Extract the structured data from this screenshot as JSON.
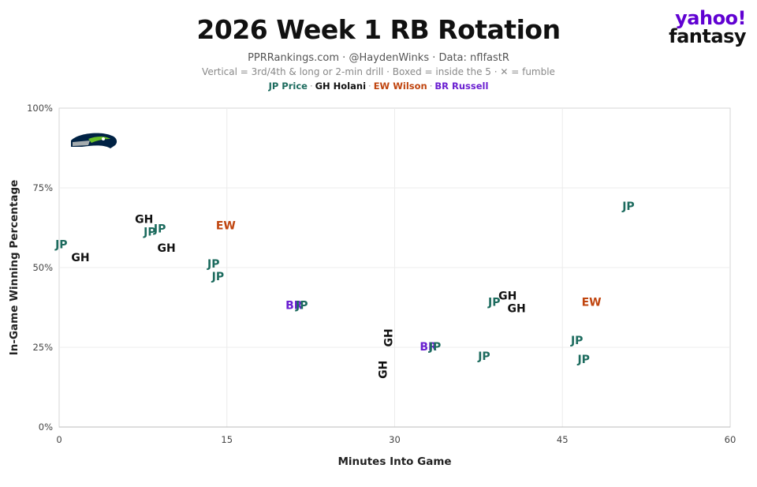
{
  "header": {
    "title": "2026 Week 1 RB Rotation",
    "subtitle_line1": "PPRRankings.com · @HaydenWinks · Data: nflfastR",
    "subtitle_line2": "Vertical = 3rd/4th & long or 2-min drill · Boxed = inside the 5 · ✕ = fumble",
    "legend": [
      {
        "label": "JP Price",
        "color": "#1c6b5e"
      },
      {
        "label": "GH Holani",
        "color": "#111111"
      },
      {
        "label": "EW Wilson",
        "color": "#c0450f"
      },
      {
        "label": "BR Russell",
        "color": "#6a1fd1"
      }
    ]
  },
  "brand": {
    "line1": "yahoo!",
    "line2": "fantasy"
  },
  "team_logo": "seahawks-logo",
  "chart_data": {
    "type": "scatter",
    "xlabel": "Minutes Into Game",
    "ylabel": "In-Game Winning Percentage",
    "xlim": [
      0,
      60
    ],
    "ylim": [
      0,
      100
    ],
    "x_ticks": [
      "0",
      "15",
      "30",
      "45",
      "60"
    ],
    "y_ticks": [
      "0%",
      "25%",
      "50%",
      "75%",
      "100%"
    ],
    "grid": true,
    "points": [
      {
        "label": "JP",
        "player": "JP Price",
        "x": 0.2,
        "y": 57,
        "vertical": false
      },
      {
        "label": "GH",
        "player": "GH Holani",
        "x": 1.9,
        "y": 53,
        "vertical": false
      },
      {
        "label": "GH",
        "player": "GH Holani",
        "x": 7.6,
        "y": 65,
        "vertical": false
      },
      {
        "label": "JP",
        "player": "JP Price",
        "x": 8.1,
        "y": 61,
        "vertical": false
      },
      {
        "label": "JP",
        "player": "JP Price",
        "x": 9.0,
        "y": 62,
        "vertical": false
      },
      {
        "label": "GH",
        "player": "GH Holani",
        "x": 9.6,
        "y": 56,
        "vertical": false
      },
      {
        "label": "EW",
        "player": "EW Wilson",
        "x": 14.9,
        "y": 63,
        "vertical": false
      },
      {
        "label": "JP",
        "player": "JP Price",
        "x": 13.8,
        "y": 51,
        "vertical": false
      },
      {
        "label": "JP",
        "player": "JP Price",
        "x": 14.2,
        "y": 47,
        "vertical": false
      },
      {
        "label": "BR",
        "player": "BR Russell",
        "x": 21.0,
        "y": 38,
        "vertical": false
      },
      {
        "label": "JP",
        "player": "JP Price",
        "x": 21.7,
        "y": 38,
        "vertical": false
      },
      {
        "label": "GH",
        "player": "GH Holani",
        "x": 29.0,
        "y": 18,
        "vertical": true
      },
      {
        "label": "GH",
        "player": "GH Holani",
        "x": 29.5,
        "y": 28,
        "vertical": true
      },
      {
        "label": "BR",
        "player": "BR Russell",
        "x": 33.0,
        "y": 25,
        "vertical": false
      },
      {
        "label": "JP",
        "player": "JP Price",
        "x": 33.6,
        "y": 25,
        "vertical": false
      },
      {
        "label": "JP",
        "player": "JP Price",
        "x": 38.0,
        "y": 22,
        "vertical": false
      },
      {
        "label": "JP",
        "player": "JP Price",
        "x": 38.9,
        "y": 39,
        "vertical": false
      },
      {
        "label": "GH",
        "player": "GH Holani",
        "x": 40.1,
        "y": 41,
        "vertical": false
      },
      {
        "label": "GH",
        "player": "GH Holani",
        "x": 40.9,
        "y": 37,
        "vertical": false
      },
      {
        "label": "EW",
        "player": "EW Wilson",
        "x": 47.6,
        "y": 39,
        "vertical": false
      },
      {
        "label": "JP",
        "player": "JP Price",
        "x": 46.3,
        "y": 27,
        "vertical": false
      },
      {
        "label": "JP",
        "player": "JP Price",
        "x": 46.9,
        "y": 21,
        "vertical": false
      },
      {
        "label": "JP",
        "player": "JP Price",
        "x": 50.9,
        "y": 69,
        "vertical": false
      }
    ]
  }
}
